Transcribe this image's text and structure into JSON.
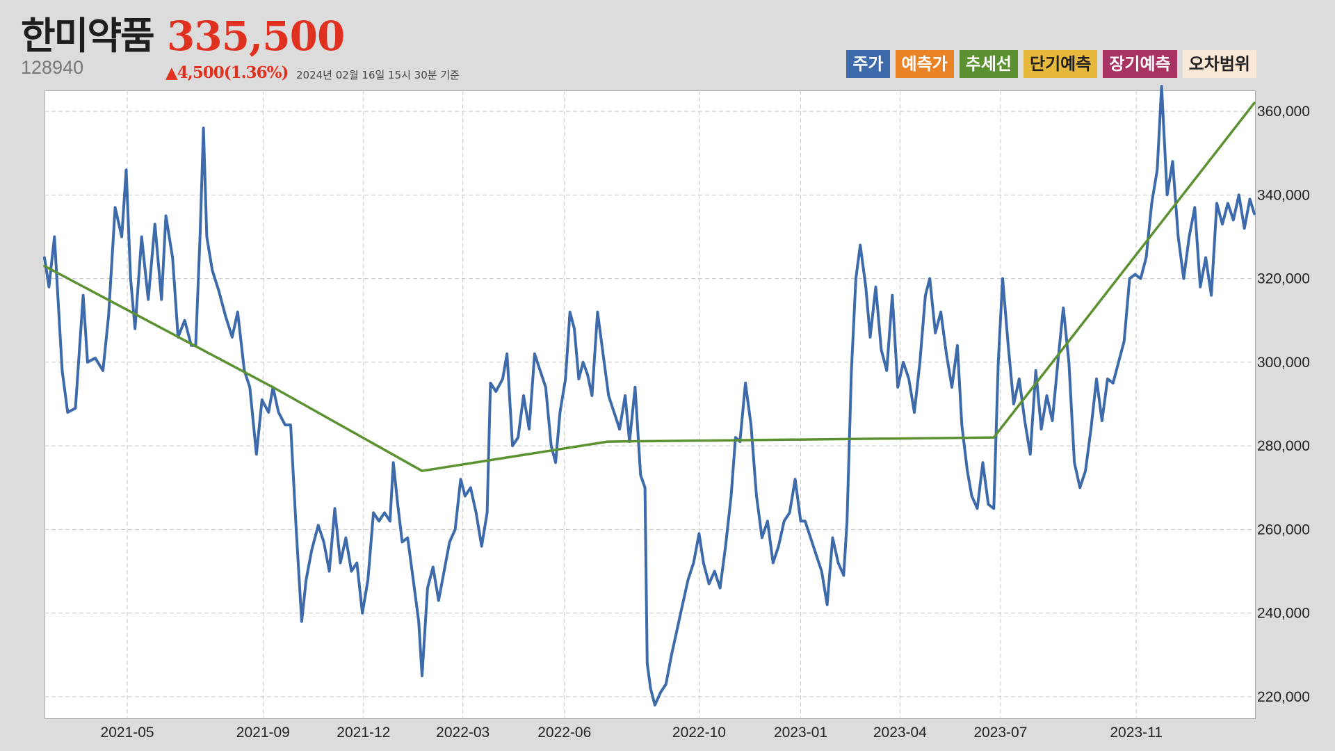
{
  "header": {
    "name": "한미약품",
    "price": "335,500",
    "code": "128940",
    "change": "▲4,500(1.36%)",
    "as_of": "2024년 02월 16일 15시 30분 기준"
  },
  "legend": [
    {
      "label": "주가",
      "color": "#3d6aaa"
    },
    {
      "label": "예측가",
      "color": "#ea8326"
    },
    {
      "label": "추세선",
      "color": "#5b9130"
    },
    {
      "label": "단기예측",
      "color": "#e6b83b"
    },
    {
      "label": "장기예측",
      "color": "#a83262"
    },
    {
      "label": "오차범위",
      "color": "#fbe9d7"
    }
  ],
  "chart_data": {
    "type": "line",
    "x_ticks": [
      "2021-05",
      "2021-09",
      "2021-12",
      "2022-03",
      "2022-06",
      "2022-10",
      "2023-01",
      "2023-04",
      "2023-07",
      "2023-11"
    ],
    "y_ticks": [
      220000,
      240000,
      260000,
      280000,
      300000,
      320000,
      340000,
      360000
    ],
    "y_tick_labels": [
      "220,000",
      "240,000",
      "260,000",
      "280,000",
      "300,000",
      "320,000",
      "340,000",
      "360,000"
    ],
    "ylim": [
      215000,
      365000
    ],
    "xlim": [
      "2021-02-15",
      "2024-02-16"
    ],
    "grid": true,
    "series": [
      {
        "name": "주가",
        "color": "#3d6aaa",
        "points": [
          [
            "2021-02-15",
            325000
          ],
          [
            "2021-02-19",
            318000
          ],
          [
            "2021-02-24",
            330000
          ],
          [
            "2021-03-03",
            298000
          ],
          [
            "2021-03-08",
            288000
          ],
          [
            "2021-03-15",
            289000
          ],
          [
            "2021-03-22",
            316000
          ],
          [
            "2021-03-26",
            300000
          ],
          [
            "2021-04-02",
            301000
          ],
          [
            "2021-04-09",
            298000
          ],
          [
            "2021-04-14",
            311000
          ],
          [
            "2021-04-20",
            337000
          ],
          [
            "2021-04-26",
            330000
          ],
          [
            "2021-04-30",
            346000
          ],
          [
            "2021-05-04",
            320000
          ],
          [
            "2021-05-08",
            308000
          ],
          [
            "2021-05-14",
            330000
          ],
          [
            "2021-05-20",
            315000
          ],
          [
            "2021-05-26",
            333000
          ],
          [
            "2021-06-01",
            315000
          ],
          [
            "2021-06-05",
            335000
          ],
          [
            "2021-06-11",
            325000
          ],
          [
            "2021-06-16",
            306000
          ],
          [
            "2021-06-22",
            310000
          ],
          [
            "2021-06-28",
            304000
          ],
          [
            "2021-07-02",
            304000
          ],
          [
            "2021-07-06",
            331000
          ],
          [
            "2021-07-09",
            356000
          ],
          [
            "2021-07-12",
            330000
          ],
          [
            "2021-07-17",
            322000
          ],
          [
            "2021-07-23",
            317000
          ],
          [
            "2021-07-29",
            311000
          ],
          [
            "2021-08-04",
            306000
          ],
          [
            "2021-08-09",
            312000
          ],
          [
            "2021-08-15",
            298000
          ],
          [
            "2021-08-20",
            294000
          ],
          [
            "2021-08-26",
            278000
          ],
          [
            "2021-08-31",
            291000
          ],
          [
            "2021-09-06",
            288000
          ],
          [
            "2021-09-10",
            294000
          ],
          [
            "2021-09-15",
            288000
          ],
          [
            "2021-09-21",
            285000
          ],
          [
            "2021-09-26",
            285000
          ],
          [
            "2021-10-01",
            260000
          ],
          [
            "2021-10-06",
            238000
          ],
          [
            "2021-10-10",
            248000
          ],
          [
            "2021-10-15",
            255000
          ],
          [
            "2021-10-21",
            261000
          ],
          [
            "2021-10-26",
            257000
          ],
          [
            "2021-10-31",
            250000
          ],
          [
            "2021-11-05",
            265000
          ],
          [
            "2021-11-10",
            252000
          ],
          [
            "2021-11-15",
            258000
          ],
          [
            "2021-11-20",
            250000
          ],
          [
            "2021-11-25",
            252000
          ],
          [
            "2021-11-30",
            240000
          ],
          [
            "2021-12-05",
            248000
          ],
          [
            "2021-12-10",
            264000
          ],
          [
            "2021-12-15",
            262000
          ],
          [
            "2021-12-20",
            264000
          ],
          [
            "2021-12-25",
            262000
          ],
          [
            "2021-12-28",
            276000
          ],
          [
            "2022-01-01",
            266000
          ],
          [
            "2022-01-05",
            257000
          ],
          [
            "2022-01-10",
            258000
          ],
          [
            "2022-01-15",
            248000
          ],
          [
            "2022-01-20",
            238000
          ],
          [
            "2022-01-23",
            225000
          ],
          [
            "2022-01-28",
            246000
          ],
          [
            "2022-02-02",
            251000
          ],
          [
            "2022-02-07",
            243000
          ],
          [
            "2022-02-12",
            250000
          ],
          [
            "2022-02-17",
            257000
          ],
          [
            "2022-02-22",
            260000
          ],
          [
            "2022-02-27",
            272000
          ],
          [
            "2022-03-03",
            268000
          ],
          [
            "2022-03-08",
            270000
          ],
          [
            "2022-03-13",
            264000
          ],
          [
            "2022-03-18",
            256000
          ],
          [
            "2022-03-23",
            264000
          ],
          [
            "2022-03-26",
            295000
          ],
          [
            "2022-03-31",
            293000
          ],
          [
            "2022-04-06",
            296000
          ],
          [
            "2022-04-10",
            302000
          ],
          [
            "2022-04-15",
            280000
          ],
          [
            "2022-04-20",
            282000
          ],
          [
            "2022-04-25",
            292000
          ],
          [
            "2022-04-30",
            284000
          ],
          [
            "2022-05-05",
            302000
          ],
          [
            "2022-05-10",
            298000
          ],
          [
            "2022-05-15",
            294000
          ],
          [
            "2022-05-20",
            280000
          ],
          [
            "2022-05-24",
            276000
          ],
          [
            "2022-05-28",
            288000
          ],
          [
            "2022-06-02",
            296000
          ],
          [
            "2022-06-06",
            312000
          ],
          [
            "2022-06-10",
            308000
          ],
          [
            "2022-06-14",
            296000
          ],
          [
            "2022-06-18",
            300000
          ],
          [
            "2022-06-22",
            297000
          ],
          [
            "2022-06-26",
            292000
          ],
          [
            "2022-07-01",
            312000
          ],
          [
            "2022-07-06",
            302000
          ],
          [
            "2022-07-11",
            292000
          ],
          [
            "2022-07-16",
            288000
          ],
          [
            "2022-07-21",
            284000
          ],
          [
            "2022-07-26",
            292000
          ],
          [
            "2022-07-30",
            281000
          ],
          [
            "2022-08-04",
            294000
          ],
          [
            "2022-08-09",
            273000
          ],
          [
            "2022-08-13",
            270000
          ],
          [
            "2022-08-15",
            228000
          ],
          [
            "2022-08-18",
            222000
          ],
          [
            "2022-08-22",
            218000
          ],
          [
            "2022-08-27",
            221000
          ],
          [
            "2022-09-01",
            223000
          ],
          [
            "2022-09-06",
            230000
          ],
          [
            "2022-09-11",
            236000
          ],
          [
            "2022-09-16",
            242000
          ],
          [
            "2022-09-21",
            248000
          ],
          [
            "2022-09-26",
            252000
          ],
          [
            "2022-10-01",
            259000
          ],
          [
            "2022-10-05",
            252000
          ],
          [
            "2022-10-10",
            247000
          ],
          [
            "2022-10-15",
            250000
          ],
          [
            "2022-10-20",
            246000
          ],
          [
            "2022-10-25",
            256000
          ],
          [
            "2022-10-30",
            268000
          ],
          [
            "2022-11-03",
            282000
          ],
          [
            "2022-11-07",
            281000
          ],
          [
            "2022-11-12",
            295000
          ],
          [
            "2022-11-17",
            285000
          ],
          [
            "2022-11-22",
            268000
          ],
          [
            "2022-11-27",
            258000
          ],
          [
            "2022-12-02",
            262000
          ],
          [
            "2022-12-07",
            252000
          ],
          [
            "2022-12-12",
            256000
          ],
          [
            "2022-12-17",
            262000
          ],
          [
            "2022-12-22",
            264000
          ],
          [
            "2022-12-27",
            272000
          ],
          [
            "2023-01-01",
            262000
          ],
          [
            "2023-01-05",
            262000
          ],
          [
            "2023-01-10",
            258000
          ],
          [
            "2023-01-15",
            254000
          ],
          [
            "2023-01-20",
            250000
          ],
          [
            "2023-01-25",
            242000
          ],
          [
            "2023-01-30",
            258000
          ],
          [
            "2023-02-04",
            252000
          ],
          [
            "2023-02-09",
            249000
          ],
          [
            "2023-02-12",
            262000
          ],
          [
            "2023-02-16",
            298000
          ],
          [
            "2023-02-20",
            320000
          ],
          [
            "2023-02-24",
            328000
          ],
          [
            "2023-03-01",
            318000
          ],
          [
            "2023-03-05",
            306000
          ],
          [
            "2023-03-10",
            318000
          ],
          [
            "2023-03-15",
            303000
          ],
          [
            "2023-03-20",
            298000
          ],
          [
            "2023-03-25",
            316000
          ],
          [
            "2023-03-30",
            294000
          ],
          [
            "2023-04-04",
            300000
          ],
          [
            "2023-04-09",
            296000
          ],
          [
            "2023-04-14",
            288000
          ],
          [
            "2023-04-19",
            300000
          ],
          [
            "2023-04-24",
            316000
          ],
          [
            "2023-04-28",
            320000
          ],
          [
            "2023-05-03",
            307000
          ],
          [
            "2023-05-08",
            312000
          ],
          [
            "2023-05-13",
            302000
          ],
          [
            "2023-05-18",
            294000
          ],
          [
            "2023-05-23",
            304000
          ],
          [
            "2023-05-27",
            285000
          ],
          [
            "2023-06-01",
            274000
          ],
          [
            "2023-06-05",
            268000
          ],
          [
            "2023-06-10",
            265000
          ],
          [
            "2023-06-15",
            276000
          ],
          [
            "2023-06-20",
            266000
          ],
          [
            "2023-06-25",
            265000
          ],
          [
            "2023-06-29",
            300000
          ],
          [
            "2023-07-03",
            320000
          ],
          [
            "2023-07-08",
            304000
          ],
          [
            "2023-07-13",
            290000
          ],
          [
            "2023-07-18",
            296000
          ],
          [
            "2023-07-23",
            286000
          ],
          [
            "2023-07-28",
            278000
          ],
          [
            "2023-08-02",
            298000
          ],
          [
            "2023-08-07",
            284000
          ],
          [
            "2023-08-12",
            292000
          ],
          [
            "2023-08-17",
            286000
          ],
          [
            "2023-08-22",
            300000
          ],
          [
            "2023-08-27",
            313000
          ],
          [
            "2023-09-01",
            300000
          ],
          [
            "2023-09-06",
            276000
          ],
          [
            "2023-09-11",
            270000
          ],
          [
            "2023-09-16",
            274000
          ],
          [
            "2023-09-21",
            284000
          ],
          [
            "2023-09-26",
            296000
          ],
          [
            "2023-10-01",
            286000
          ],
          [
            "2023-10-06",
            296000
          ],
          [
            "2023-10-11",
            295000
          ],
          [
            "2023-10-16",
            300000
          ],
          [
            "2023-10-21",
            305000
          ],
          [
            "2023-10-26",
            320000
          ],
          [
            "2023-10-31",
            321000
          ],
          [
            "2023-11-05",
            320000
          ],
          [
            "2023-11-10",
            325000
          ],
          [
            "2023-11-15",
            338000
          ],
          [
            "2023-11-20",
            346000
          ],
          [
            "2023-11-24",
            366000
          ],
          [
            "2023-11-29",
            340000
          ],
          [
            "2023-12-04",
            348000
          ],
          [
            "2023-12-09",
            330000
          ],
          [
            "2023-12-14",
            320000
          ],
          [
            "2023-12-19",
            330000
          ],
          [
            "2023-12-24",
            337000
          ],
          [
            "2023-12-29",
            318000
          ],
          [
            "2024-01-03",
            325000
          ],
          [
            "2024-01-08",
            316000
          ],
          [
            "2024-01-13",
            338000
          ],
          [
            "2024-01-18",
            333000
          ],
          [
            "2024-01-23",
            338000
          ],
          [
            "2024-01-28",
            334000
          ],
          [
            "2024-02-02",
            340000
          ],
          [
            "2024-02-07",
            332000
          ],
          [
            "2024-02-12",
            339000
          ],
          [
            "2024-02-16",
            335500
          ]
        ]
      },
      {
        "name": "추세선",
        "color": "#5b9130",
        "points": [
          [
            "2021-02-15",
            323000
          ],
          [
            "2021-09-10",
            294000
          ],
          [
            "2022-01-23",
            274000
          ],
          [
            "2022-07-10",
            281000
          ],
          [
            "2023-06-25",
            282000
          ],
          [
            "2024-02-16",
            362000
          ]
        ]
      }
    ]
  }
}
